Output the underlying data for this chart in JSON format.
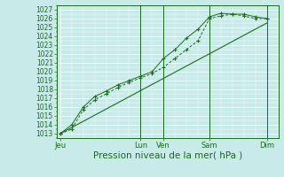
{
  "bg_color": "#c8eae8",
  "grid_color": "#ffffff",
  "line_color": "#1a6b1a",
  "ylabel_values": [
    1013,
    1014,
    1015,
    1016,
    1017,
    1018,
    1019,
    1020,
    1021,
    1022,
    1023,
    1024,
    1025,
    1026,
    1027
  ],
  "ylim": [
    1012.5,
    1027.5
  ],
  "xlabel": "Pression niveau de la mer( hPa )",
  "xtick_labels": [
    "Jeu",
    "Lun",
    "Ven",
    "Sam",
    "Dim"
  ],
  "xtick_positions": [
    0,
    3.5,
    4.5,
    6.5,
    9.0
  ],
  "vline_positions": [
    3.5,
    4.5,
    6.5,
    9.0
  ],
  "series1_x": [
    0,
    0.5,
    1.0,
    1.5,
    2.0,
    2.5,
    3.0,
    3.5,
    4.0,
    4.5,
    5.0,
    5.5,
    6.0,
    6.5,
    7.0,
    7.5,
    8.0,
    8.5,
    9.0
  ],
  "series1_y": [
    1013.0,
    1013.5,
    1015.7,
    1016.8,
    1017.5,
    1018.2,
    1018.8,
    1019.3,
    1019.8,
    1020.5,
    1021.5,
    1022.5,
    1023.5,
    1026.0,
    1026.3,
    1026.5,
    1026.3,
    1026.0,
    1026.0
  ],
  "series2_x": [
    0,
    0.5,
    1.0,
    1.5,
    2.0,
    2.5,
    3.0,
    3.5,
    4.0,
    4.5,
    5.0,
    5.5,
    6.0,
    6.5,
    7.0,
    7.5,
    8.0,
    8.5,
    9.0
  ],
  "series2_y": [
    1013.0,
    1014.0,
    1016.0,
    1017.2,
    1017.8,
    1018.5,
    1019.0,
    1019.5,
    1020.0,
    1021.5,
    1022.5,
    1023.8,
    1024.8,
    1026.2,
    1026.6,
    1026.5,
    1026.5,
    1026.2,
    1026.0
  ],
  "series3_x": [
    0,
    9.0
  ],
  "series3_y": [
    1013.0,
    1025.5
  ],
  "font_color": "#1a6b1a",
  "ytick_fontsize": 5.5,
  "xtick_fontsize": 6.0,
  "xlabel_fontsize": 7.5
}
